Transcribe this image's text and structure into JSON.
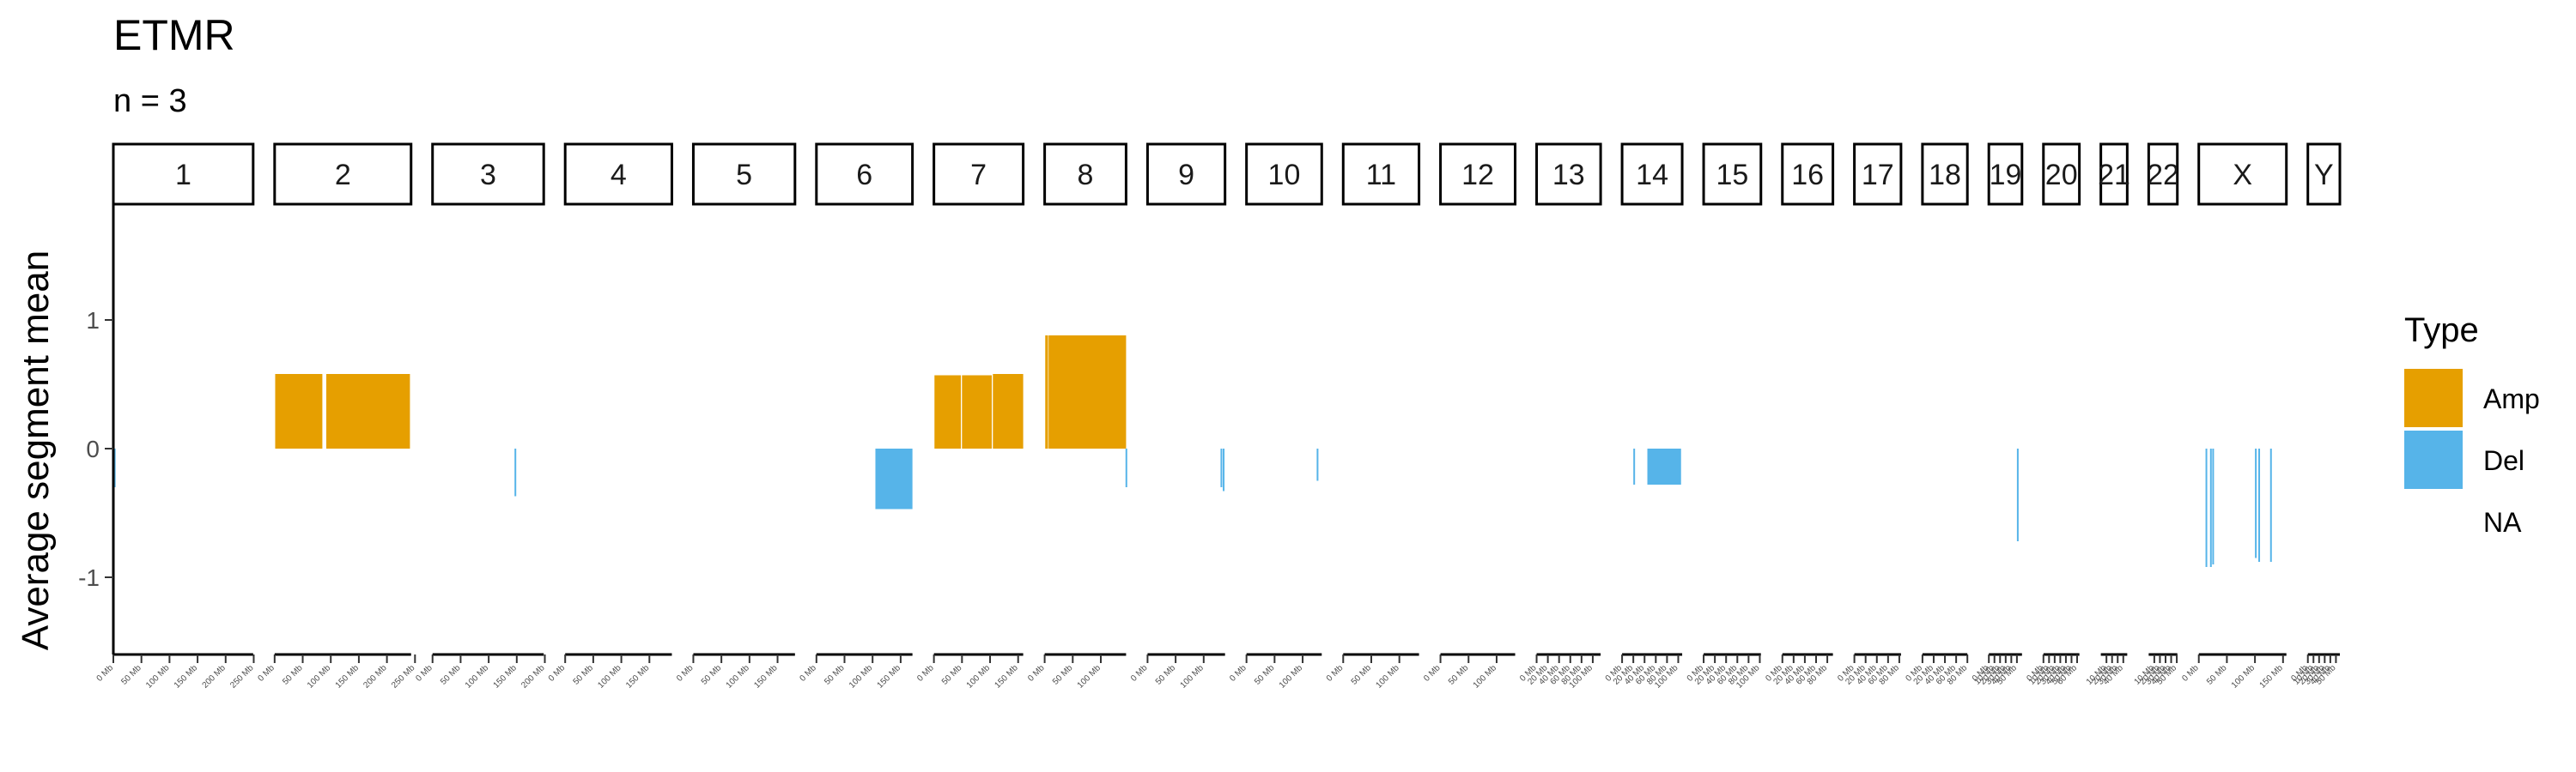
{
  "chart_data": {
    "type": "bar",
    "title": "ETMR",
    "subtitle": "n = 3",
    "xlabel": "",
    "ylabel": "Average segment mean",
    "ylim": [
      -1.6,
      1.9
    ],
    "yticks": [
      -1,
      0,
      1
    ],
    "ytick_labels": [
      "-1",
      "0",
      "1"
    ],
    "grid": false,
    "legend": {
      "title": "Type",
      "position": "right",
      "entries": [
        {
          "label": "Amp",
          "color": "#E69F00"
        },
        {
          "label": "Del",
          "color": "#56B4E9"
        },
        {
          "label": "NA",
          "color": null
        }
      ]
    },
    "colors": {
      "Amp": "#E69F00",
      "Del": "#56B4E9"
    },
    "chromosomes": [
      {
        "name": "1",
        "length_mb": 249,
        "ticks_mb": [
          0,
          50,
          100,
          150,
          200,
          250
        ]
      },
      {
        "name": "2",
        "length_mb": 243,
        "ticks_mb": [
          0,
          50,
          100,
          150,
          200,
          250
        ]
      },
      {
        "name": "3",
        "length_mb": 198,
        "ticks_mb": [
          0,
          50,
          100,
          150,
          200
        ]
      },
      {
        "name": "4",
        "length_mb": 190,
        "ticks_mb": [
          0,
          50,
          100,
          150
        ]
      },
      {
        "name": "5",
        "length_mb": 181,
        "ticks_mb": [
          0,
          50,
          100,
          150
        ]
      },
      {
        "name": "6",
        "length_mb": 171,
        "ticks_mb": [
          0,
          50,
          100,
          150
        ]
      },
      {
        "name": "7",
        "length_mb": 159,
        "ticks_mb": [
          0,
          50,
          100,
          150
        ]
      },
      {
        "name": "8",
        "length_mb": 145,
        "ticks_mb": [
          0,
          50,
          100
        ]
      },
      {
        "name": "9",
        "length_mb": 138,
        "ticks_mb": [
          0,
          50,
          100
        ]
      },
      {
        "name": "10",
        "length_mb": 134,
        "ticks_mb": [
          0,
          50,
          100
        ]
      },
      {
        "name": "11",
        "length_mb": 135,
        "ticks_mb": [
          0,
          50,
          100
        ]
      },
      {
        "name": "12",
        "length_mb": 133,
        "ticks_mb": [
          0,
          50,
          100
        ]
      },
      {
        "name": "13",
        "length_mb": 114,
        "ticks_mb": [
          0,
          20,
          40,
          60,
          80,
          100
        ]
      },
      {
        "name": "14",
        "length_mb": 107,
        "ticks_mb": [
          0,
          20,
          40,
          60,
          80,
          100
        ]
      },
      {
        "name": "15",
        "length_mb": 102,
        "ticks_mb": [
          0,
          20,
          40,
          60,
          80,
          100
        ]
      },
      {
        "name": "16",
        "length_mb": 90,
        "ticks_mb": [
          0,
          20,
          40,
          60,
          80
        ]
      },
      {
        "name": "17",
        "length_mb": 83,
        "ticks_mb": [
          0,
          20,
          40,
          60,
          80
        ]
      },
      {
        "name": "18",
        "length_mb": 80,
        "ticks_mb": [
          0,
          20,
          40,
          60,
          80
        ]
      },
      {
        "name": "19",
        "length_mb": 59,
        "ticks_mb": [
          0,
          10,
          20,
          30,
          40,
          50
        ]
      },
      {
        "name": "20",
        "length_mb": 64,
        "ticks_mb": [
          0,
          10,
          20,
          30,
          40,
          50,
          60
        ]
      },
      {
        "name": "21",
        "length_mb": 47,
        "ticks_mb": [
          10,
          20,
          30,
          40
        ]
      },
      {
        "name": "22",
        "length_mb": 51,
        "ticks_mb": [
          10,
          20,
          30,
          40,
          50
        ]
      },
      {
        "name": "X",
        "length_mb": 156,
        "ticks_mb": [
          0,
          50,
          100,
          150
        ]
      },
      {
        "name": "Y",
        "length_mb": 57,
        "ticks_mb": [
          0,
          10,
          20,
          30,
          40,
          50
        ]
      }
    ],
    "tick_label_suffix": " Mb",
    "segments": [
      {
        "chrom": "1",
        "start_mb": 1,
        "end_mb": 2,
        "value": -0.3,
        "type": "Del"
      },
      {
        "chrom": "2",
        "start_mb": 1,
        "end_mb": 85,
        "value": 0.58,
        "type": "Amp"
      },
      {
        "chrom": "2",
        "start_mb": 92,
        "end_mb": 241,
        "value": 0.58,
        "type": "Amp"
      },
      {
        "chrom": "3",
        "start_mb": 146,
        "end_mb": 147,
        "value": -0.37,
        "type": "Del"
      },
      {
        "chrom": "6",
        "start_mb": 105,
        "end_mb": 171,
        "value": -0.47,
        "type": "Del"
      },
      {
        "chrom": "7",
        "start_mb": 1,
        "end_mb": 48,
        "value": 0.57,
        "type": "Amp"
      },
      {
        "chrom": "7",
        "start_mb": 50,
        "end_mb": 103,
        "value": 0.57,
        "type": "Amp"
      },
      {
        "chrom": "7",
        "start_mb": 105,
        "end_mb": 159,
        "value": 0.58,
        "type": "Amp"
      },
      {
        "chrom": "8",
        "start_mb": 1,
        "end_mb": 6,
        "value": 0.88,
        "type": "Amp"
      },
      {
        "chrom": "8",
        "start_mb": 7,
        "end_mb": 145,
        "value": 0.88,
        "type": "Amp"
      },
      {
        "chrom": "8",
        "start_mb": 144,
        "end_mb": 145,
        "value": -0.3,
        "type": "Del"
      },
      {
        "chrom": "9",
        "start_mb": 130,
        "end_mb": 131,
        "value": -0.3,
        "type": "Del"
      },
      {
        "chrom": "9",
        "start_mb": 134,
        "end_mb": 135,
        "value": -0.33,
        "type": "Del"
      },
      {
        "chrom": "10",
        "start_mb": 125,
        "end_mb": 126,
        "value": -0.25,
        "type": "Del"
      },
      {
        "chrom": "14",
        "start_mb": 20,
        "end_mb": 21,
        "value": -0.28,
        "type": "Del"
      },
      {
        "chrom": "14",
        "start_mb": 45,
        "end_mb": 105,
        "value": -0.28,
        "type": "Del"
      },
      {
        "chrom": "19",
        "start_mb": 50,
        "end_mb": 51,
        "value": -0.72,
        "type": "Del"
      },
      {
        "chrom": "X",
        "start_mb": 12,
        "end_mb": 13,
        "value": -0.92,
        "type": "Del"
      },
      {
        "chrom": "X",
        "start_mb": 20,
        "end_mb": 21,
        "value": -0.92,
        "type": "Del"
      },
      {
        "chrom": "X",
        "start_mb": 24,
        "end_mb": 25,
        "value": -0.9,
        "type": "Del"
      },
      {
        "chrom": "X",
        "start_mb": 100,
        "end_mb": 101,
        "value": -0.85,
        "type": "Del"
      },
      {
        "chrom": "X",
        "start_mb": 106,
        "end_mb": 107,
        "value": -0.88,
        "type": "Del"
      },
      {
        "chrom": "X",
        "start_mb": 127,
        "end_mb": 128,
        "value": -0.88,
        "type": "Del"
      }
    ]
  }
}
